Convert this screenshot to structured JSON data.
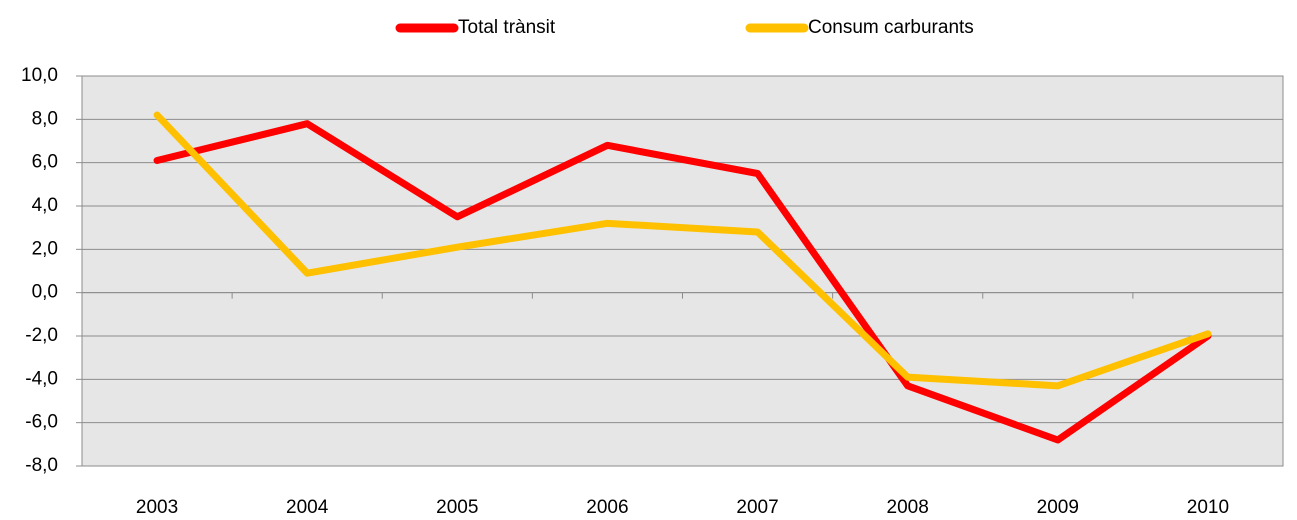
{
  "chart_data": {
    "type": "line",
    "categories": [
      "2003",
      "2004",
      "2005",
      "2006",
      "2007",
      "2008",
      "2009",
      "2010"
    ],
    "series": [
      {
        "name": "Total trànsit",
        "color": "#ff0000",
        "values": [
          6.1,
          7.8,
          3.5,
          6.8,
          5.5,
          -4.3,
          -6.8,
          -2.0
        ]
      },
      {
        "name": "Consum carburants",
        "color": "#ffc000",
        "values": [
          8.2,
          0.9,
          2.1,
          3.2,
          2.8,
          -3.9,
          -4.3,
          -1.9
        ]
      }
    ],
    "ylim": [
      -8,
      10
    ],
    "yticks": [
      {
        "value": -8,
        "label": "-8,0"
      },
      {
        "value": -6,
        "label": "-6,0"
      },
      {
        "value": -4,
        "label": "-4,0"
      },
      {
        "value": -2,
        "label": "-2,0"
      },
      {
        "value": 0,
        "label": "0,0"
      },
      {
        "value": 2,
        "label": "2,0"
      },
      {
        "value": 4,
        "label": "4,0"
      },
      {
        "value": 6,
        "label": "6,0"
      },
      {
        "value": 8,
        "label": "8,0"
      },
      {
        "value": 10,
        "label": "10,0"
      }
    ],
    "grid": true,
    "legend": "top"
  }
}
